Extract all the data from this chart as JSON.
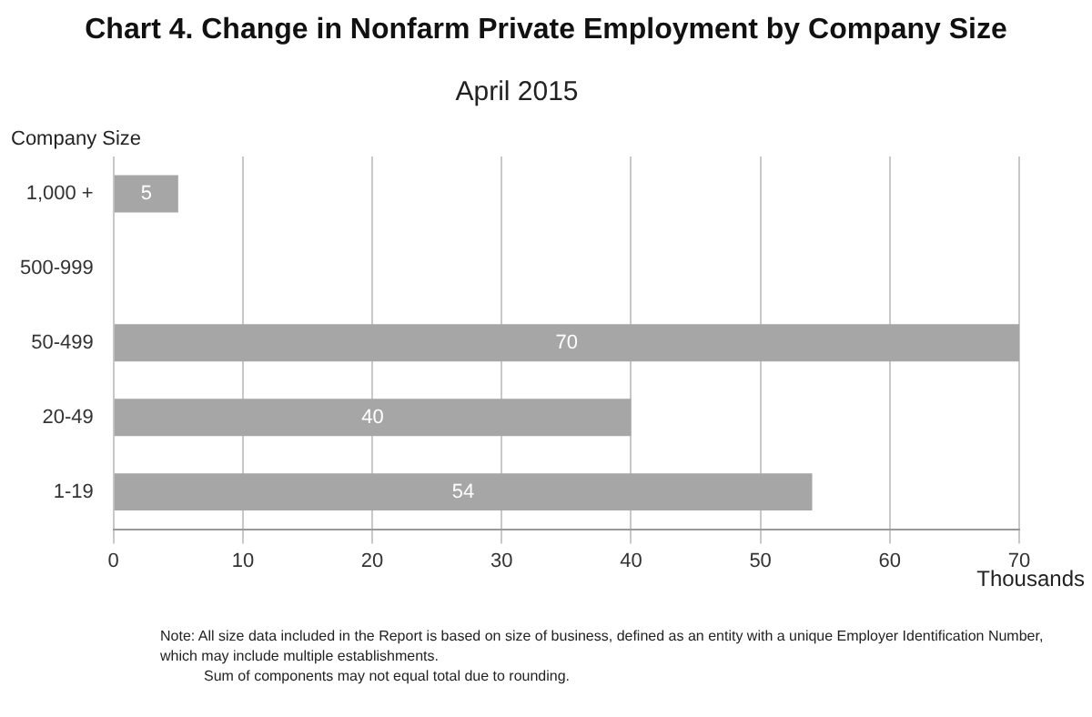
{
  "chart_data": {
    "type": "bar",
    "orientation": "horizontal",
    "title": "Chart 4. Change in Nonfarm Private Employment by Company Size",
    "subtitle": "April 2015",
    "ylabel": "Company Size",
    "xlabel": "Thousands",
    "categories": [
      "1,000 +",
      "500-999",
      "50-499",
      "20-49",
      "1-19"
    ],
    "values": [
      5,
      null,
      70,
      40,
      54
    ],
    "color": "#a6a6a6",
    "data_labels": true,
    "xlim": [
      0,
      70
    ],
    "xticks": [
      0,
      10,
      20,
      30,
      40,
      50,
      60,
      70
    ],
    "grid": "x",
    "legend": false,
    "annotations": [
      "Note:  All size data included in the Report is based on size of business, defined as an entity with a unique Employer Identification Number, which may include multiple establishments.",
      "Sum of components may not equal total due to rounding."
    ]
  }
}
